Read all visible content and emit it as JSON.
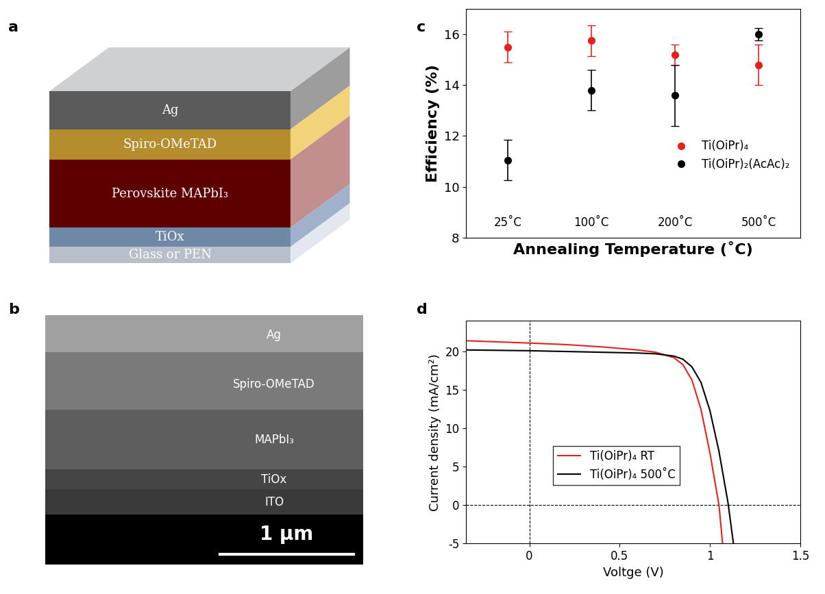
{
  "diagram": {
    "label": "a",
    "layers": [
      "Ag",
      "Spiro-OMeTAD",
      "Perovskite MAPbI₃",
      "TiOx",
      "Glass or PEN"
    ]
  },
  "sem_image": {
    "label": "b",
    "layers": [
      "Ag",
      "Spiro-OMeTAD",
      "MAPbI₃",
      "TiOx",
      "ITO"
    ],
    "scale_bar": "1 µm"
  },
  "chart_data": [
    {
      "label": "c",
      "type": "scatter",
      "x_label": "Annealing Temperature (˚C)",
      "y_label": "Efficiency (%)",
      "categories": [
        "25˚C",
        "100˚C",
        "200˚C",
        "500˚C"
      ],
      "ylim": [
        8,
        17
      ],
      "yticks": [
        8,
        10,
        12,
        14,
        16
      ],
      "legend": "right",
      "marker": "circle",
      "series": [
        {
          "name": "Ti(OiPr)₄",
          "color": "#e8201c",
          "values": [
            15.5,
            15.75,
            15.2,
            14.8
          ],
          "errors": [
            0.6,
            0.6,
            0.4,
            0.8
          ]
        },
        {
          "name": "Ti(OiPr)₂(AcAc)₂",
          "color": "#000000",
          "values": [
            11.05,
            13.8,
            13.6,
            16.0
          ],
          "errors": [
            0.8,
            0.8,
            1.2,
            0.25
          ]
        }
      ]
    },
    {
      "label": "d",
      "type": "line",
      "x_label": "Voltge (V)",
      "y_label": "Current density (mA/cm²)",
      "xlim": [
        -0.35,
        1.5
      ],
      "xticks": [
        0,
        0.5,
        1,
        1.5
      ],
      "ylim": [
        -5,
        24
      ],
      "yticks": [
        -5,
        0,
        5,
        10,
        15,
        20
      ],
      "vlines": [
        0
      ],
      "hlines": [
        0
      ],
      "legend": "center",
      "series": [
        {
          "name": "Ti(OiPr)₄ RT",
          "color": "#e8201c",
          "x": [
            -0.35,
            0,
            0.2,
            0.4,
            0.6,
            0.7,
            0.8,
            0.85,
            0.9,
            0.95,
            1.0,
            1.05,
            1.07
          ],
          "values": [
            21.4,
            21.1,
            20.9,
            20.6,
            20.2,
            19.9,
            19.2,
            18.3,
            16.3,
            12.5,
            6.8,
            0.0,
            -5.0
          ]
        },
        {
          "name": "Ti(OiPr)₄ 500˚C",
          "color": "#000000",
          "x": [
            -0.35,
            0,
            0.2,
            0.4,
            0.6,
            0.7,
            0.8,
            0.85,
            0.9,
            0.95,
            1.0,
            1.05,
            1.1,
            1.13
          ],
          "values": [
            20.2,
            20.1,
            20.0,
            19.9,
            19.8,
            19.7,
            19.4,
            19.0,
            18.0,
            16.0,
            12.3,
            7.0,
            0.3,
            -5.0
          ]
        }
      ]
    }
  ]
}
